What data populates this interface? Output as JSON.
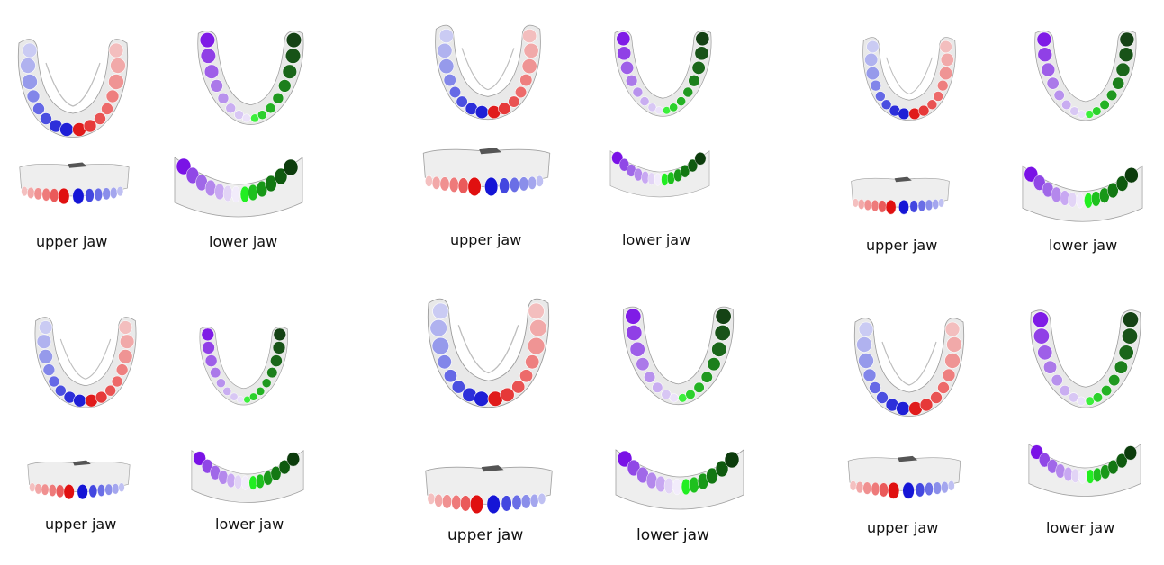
{
  "captions": {
    "upper": "upper jaw",
    "lower": "lower jaw"
  },
  "colors": {
    "gum": "#e6e6e6",
    "gum_shadow": "#9a9a9a",
    "upper_left_light": "#b7b8f2",
    "upper_left_mid": "#6f73e8",
    "upper_left_dark": "#1515d6",
    "upper_right_light": "#f2b3b3",
    "upper_right_mid": "#ee6a6a",
    "upper_right_dark": "#e01010",
    "lower_left_dark": "#7a12e6",
    "lower_left_mid": "#a77ae8",
    "lower_left_light": "#e2d4f6",
    "lower_right_light": "#22ee22",
    "lower_right_mid": "#1d9a1d",
    "lower_right_dark": "#0c3c0c"
  },
  "groups": [
    {
      "id": "group-1"
    },
    {
      "id": "group-2"
    },
    {
      "id": "group-3"
    },
    {
      "id": "group-4"
    },
    {
      "id": "group-5"
    },
    {
      "id": "group-6"
    }
  ]
}
